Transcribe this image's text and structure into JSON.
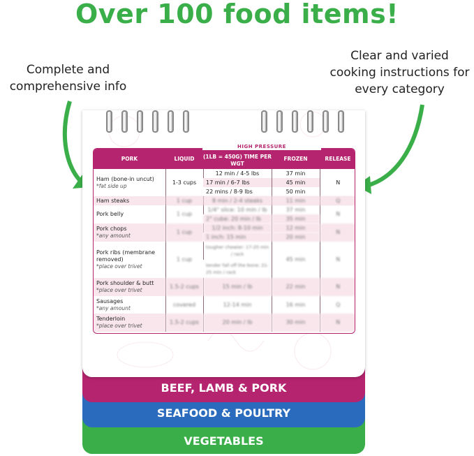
{
  "headline": "Over 100 food items!",
  "left_callout": "Complete and comprehensive info",
  "right_callout": "Clear and varied cooking instructions for every category",
  "colors": {
    "green": "#3aae49",
    "magenta": "#b5246e",
    "blue": "#2a6bbd"
  },
  "table": {
    "super_header": "HIGH PRESSURE",
    "headers": [
      "PORK",
      "LIQUID",
      "(1LB = 450G) TIME PER WGT",
      "FROZEN",
      "RELEASE"
    ],
    "rows": [
      {
        "item": "Ham (bone-in uncut)",
        "note": "*fat side up",
        "liquid": "1-3 cups",
        "times": [
          "12 min / 4-5 lbs",
          "17 min / 6-7 lbs",
          "22 mins / 8-9 lbs"
        ],
        "frozen": [
          "37 min",
          "45 min",
          "50 min"
        ],
        "release": "N"
      },
      {
        "item": "Ham steaks",
        "liquid": "1 cup",
        "times": [
          "8 min / 2-4 steaks"
        ],
        "frozen": [
          "11 min"
        ],
        "release": "Q"
      },
      {
        "item": "Pork belly",
        "liquid": "1 cup",
        "times": [
          "1/4\" slice: 10 min / lb",
          "2\" cube: 20 min / lb"
        ],
        "frozen": [
          "37 min",
          "35 min"
        ],
        "release": "N"
      },
      {
        "item": "Pork chops",
        "note": "*any amount",
        "liquid": "1 cup",
        "times": [
          "1/2 inch: 8-10 min",
          "1 inch: 15 min"
        ],
        "frozen": [
          "12 min",
          "20 min"
        ],
        "release": "N"
      },
      {
        "item": "Pork ribs (membrane removed)",
        "note": "*place over trivet",
        "liquid": "1 cup",
        "times": [
          "tougher chewier: 17-20 min / rack",
          "tender fall off the bone: 21-25 min / rack"
        ],
        "frozen": [
          "45 min"
        ],
        "release": "N"
      },
      {
        "item": "Pork shoulder & butt",
        "note": "*place over trivet",
        "liquid": "1.5-2 cups",
        "times": [
          "15 min / lb"
        ],
        "frozen": [
          "22 min"
        ],
        "release": "N"
      },
      {
        "item": "Sausages",
        "note": "*any amount",
        "liquid": "covered",
        "times": [
          "12-14 min"
        ],
        "frozen": [
          "16 min"
        ],
        "release": "Q"
      },
      {
        "item": "Tenderloin",
        "note": "*place over trivet",
        "liquid": "1.5-2 cups",
        "times": [
          "20 min / lb"
        ],
        "frozen": [
          "30 min"
        ],
        "release": "N"
      }
    ]
  },
  "tabs": [
    "BEEF, LAMB & PORK",
    "SEAFOOD & POULTRY",
    "VEGETABLES"
  ]
}
